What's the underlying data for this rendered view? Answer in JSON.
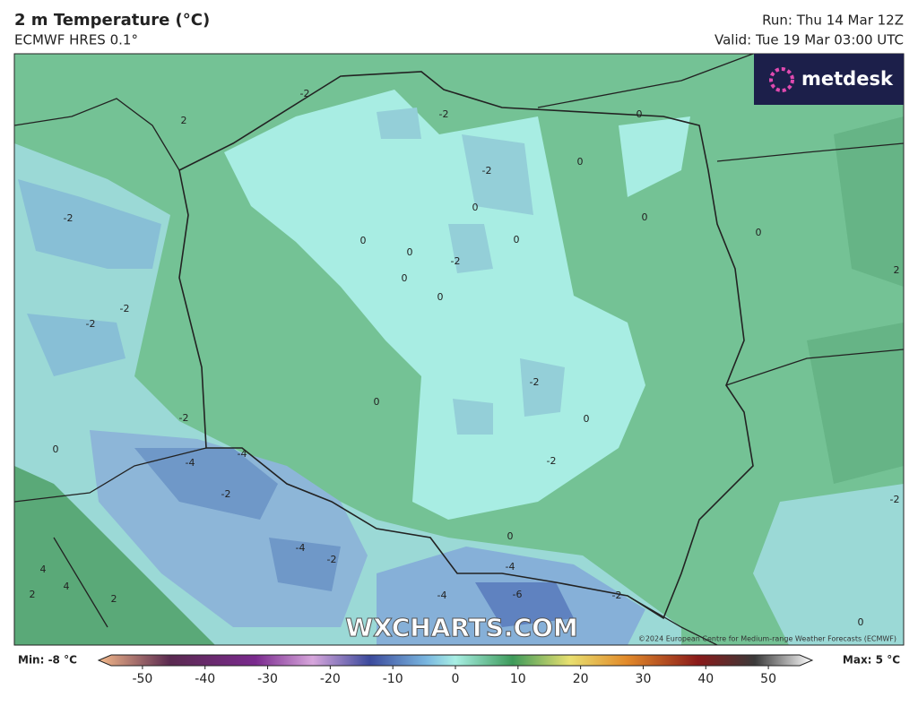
{
  "header": {
    "title": "2 m Temperature (°C)",
    "subtitle": "ECMWF HRES 0.1°",
    "run": "Run: Thu 14 Mar 12Z",
    "valid": "Valid: Tue 19 Mar 03:00 UTC"
  },
  "logo": "metdesk",
  "watermark": "WXCHARTS.COM",
  "copyright": "©2024 European Centre for Medium-range Weather Forecasts (ECMWF)",
  "contour_labels": [
    "-2",
    "2",
    "-2",
    "0",
    "-2",
    "0",
    "-2",
    "0",
    "0",
    "0",
    "0",
    "0",
    "-2",
    "0",
    "2",
    "0",
    "0",
    "-2",
    "-2",
    "0",
    "-2",
    "0",
    "-2",
    "0",
    "-4",
    "-4",
    "-2",
    "-2",
    "-2",
    "-4",
    "-2",
    "0",
    "-4",
    "4",
    "4",
    "2",
    "2",
    "-4",
    "-6",
    "-2",
    "0"
  ],
  "colorbar": {
    "min_label": "Min: -8 °C",
    "max_label": "Max: 5 °C",
    "lim": [
      -55,
      55
    ],
    "ticks": [
      -50,
      -40,
      -30,
      -20,
      -10,
      0,
      10,
      20,
      30,
      40,
      50
    ]
  }
}
